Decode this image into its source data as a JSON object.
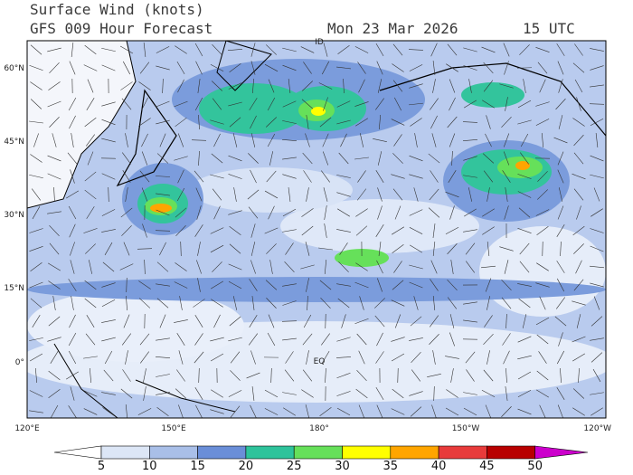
{
  "header": {
    "title": "Surface Wind (knots)",
    "subtitle": "GFS 009 Hour Forecast",
    "date": "Mon 23 Mar 2026",
    "time": "15 UTC"
  },
  "map": {
    "lat_labels": [
      "60°N",
      "45°N",
      "30°N",
      "15°N",
      "0°"
    ],
    "lon_labels": [
      "120°E",
      "150°E",
      "180°",
      "150°W",
      "120°W"
    ],
    "annotations": [
      "ID",
      "EQ"
    ]
  },
  "colorbar": {
    "ticks": [
      5,
      10,
      15,
      20,
      25,
      30,
      35,
      40,
      45,
      50
    ],
    "colors": [
      "#ffffff",
      "#dce6f6",
      "#a9bfe8",
      "#6a8ed8",
      "#2ec39b",
      "#66e05a",
      "#ffff00",
      "#ffa500",
      "#e83b3b",
      "#b80000",
      "#cc00cc"
    ]
  }
}
